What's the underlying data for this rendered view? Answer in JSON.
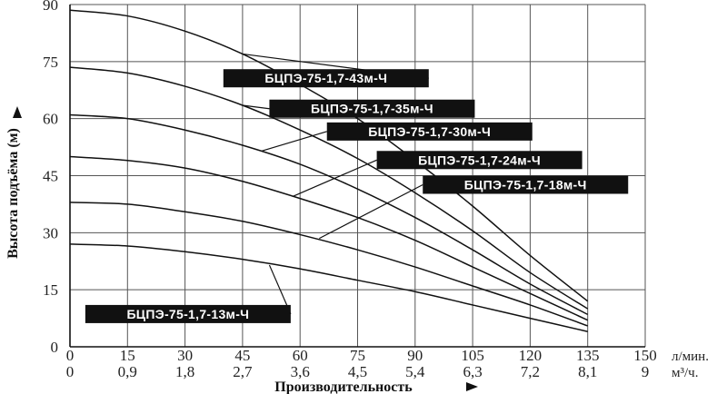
{
  "chart_data": {
    "type": "line",
    "xlabel": "Производительность",
    "ylabel": "Высота подъёма (м)",
    "x_unit_primary": "л/мин.",
    "x_unit_secondary": "м³/ч.",
    "x_ticks": [
      "0",
      "15",
      "30",
      "45",
      "60",
      "75",
      "90",
      "105",
      "120",
      "135",
      "150"
    ],
    "x_ticks_secondary": [
      "0",
      "0,9",
      "1,8",
      "2,7",
      "3,6",
      "4,5",
      "5,4",
      "6,3",
      "7,2",
      "8,1",
      "9"
    ],
    "y_ticks": [
      "0",
      "15",
      "30",
      "45",
      "60",
      "75",
      "90"
    ],
    "xlim": [
      0,
      150
    ],
    "ylim": [
      0,
      90
    ],
    "grid": true,
    "series": [
      {
        "name": "БЦПЭ-75-1,7-43м-Ч",
        "x": [
          0,
          15,
          30,
          45,
          60,
          75,
          90,
          105,
          120,
          135
        ],
        "y": [
          88.5,
          87,
          83,
          77,
          69,
          60,
          49,
          37,
          24,
          12
        ]
      },
      {
        "name": "БЦПЭ-75-1,7-35м-Ч",
        "x": [
          0,
          15,
          30,
          45,
          60,
          75,
          90,
          105,
          120,
          135
        ],
        "y": [
          73.5,
          72,
          68.5,
          63.5,
          57,
          49.5,
          40.5,
          30.5,
          19.5,
          10
        ]
      },
      {
        "name": "БЦПЭ-75-1,7-30м-Ч",
        "x": [
          0,
          15,
          30,
          45,
          60,
          75,
          90,
          105,
          120,
          135
        ],
        "y": [
          61,
          60,
          57,
          53,
          48,
          41.5,
          34,
          25.5,
          16.5,
          8.5
        ]
      },
      {
        "name": "БЦПЭ-75-1,7-24м-Ч",
        "x": [
          0,
          15,
          30,
          45,
          60,
          75,
          90,
          105,
          120,
          135
        ],
        "y": [
          50,
          49,
          47,
          43.5,
          39,
          34,
          28,
          21,
          14,
          7
        ]
      },
      {
        "name": "БЦПЭ-75-1,7-18м-Ч",
        "x": [
          0,
          15,
          30,
          45,
          60,
          75,
          90,
          105,
          120,
          135
        ],
        "y": [
          38,
          37.5,
          35.5,
          33,
          29.5,
          25.5,
          21,
          16,
          11,
          5.5
        ]
      },
      {
        "name": "БЦПЭ-75-1,7-13м-Ч",
        "x": [
          0,
          15,
          30,
          45,
          60,
          75,
          90,
          105,
          120,
          135
        ],
        "y": [
          27,
          26.5,
          25,
          23,
          20.5,
          17.5,
          14.5,
          11,
          7.5,
          4
        ]
      }
    ],
    "series_labels": [
      {
        "text": "БЦПЭ-75-1,7-43м-Ч",
        "at": [
          40,
          73
        ],
        "pointer_to": [
          45,
          77
        ]
      },
      {
        "text": "БЦПЭ-75-1,7-35м-Ч",
        "at": [
          52,
          65
        ],
        "pointer_to": [
          45,
          63.5
        ]
      },
      {
        "text": "БЦПЭ-75-1,7-30м-Ч",
        "at": [
          67,
          59
        ],
        "pointer_to": [
          50,
          51.5
        ]
      },
      {
        "text": "БЦПЭ-75-1,7-24м-Ч",
        "at": [
          80,
          51.5
        ],
        "pointer_to": [
          58,
          39.5
        ]
      },
      {
        "text": "БЦПЭ-75-1,7-18м-Ч",
        "at": [
          92,
          45
        ],
        "pointer_to": [
          65,
          28.5
        ]
      },
      {
        "text": "БЦПЭ-75-1,7-13м-Ч",
        "at": [
          4,
          11
        ],
        "pointer_to": [
          52,
          21.5
        ]
      }
    ]
  }
}
